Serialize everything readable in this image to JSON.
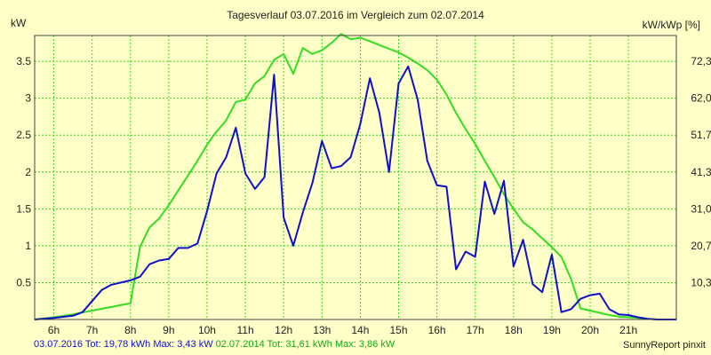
{
  "chart_data": {
    "type": "line",
    "title": "Tagesverlauf 03.07.2016 im Vergleich zum 02.07.2014",
    "ylabel_left": "kW",
    "ylabel_right": "kW/kWp [%]",
    "x_ticks": [
      "6h",
      "7h",
      "8h",
      "9h",
      "10h",
      "11h",
      "12h",
      "13h",
      "14h",
      "15h",
      "16h",
      "17h",
      "18h",
      "19h",
      "20h",
      "21h"
    ],
    "x_range": [
      5.5,
      22.25
    ],
    "y_range": [
      0,
      3.85
    ],
    "y_ticks": [
      "0.5",
      "1",
      "1.5",
      "2",
      "2.5",
      "3",
      "3.5"
    ],
    "y_ticks_right": [
      "10,3",
      "20,7",
      "31,0",
      "41,3",
      "51,7",
      "62,0",
      "72,3"
    ],
    "grid": true,
    "series": [
      {
        "name": "03.07.2016",
        "color": "#1010cc",
        "x": [
          5.5,
          6.0,
          6.5,
          6.75,
          7.0,
          7.25,
          7.5,
          7.75,
          8.0,
          8.25,
          8.5,
          8.75,
          9.0,
          9.25,
          9.5,
          9.75,
          10.0,
          10.25,
          10.5,
          10.75,
          11.0,
          11.25,
          11.5,
          11.75,
          12.0,
          12.25,
          12.5,
          12.75,
          13.0,
          13.25,
          13.5,
          13.75,
          14.0,
          14.25,
          14.5,
          14.75,
          15.0,
          15.25,
          15.5,
          15.75,
          16.0,
          16.25,
          16.5,
          16.75,
          17.0,
          17.25,
          17.5,
          17.75,
          18.0,
          18.25,
          18.5,
          18.75,
          19.0,
          19.25,
          19.5,
          19.75,
          20.0,
          20.25,
          20.5,
          20.75,
          21.0,
          21.25,
          21.5,
          21.75,
          22.0,
          22.25
        ],
        "values": [
          0,
          0.02,
          0.05,
          0.1,
          0.25,
          0.4,
          0.47,
          0.5,
          0.53,
          0.58,
          0.75,
          0.8,
          0.82,
          0.97,
          0.97,
          1.03,
          1.47,
          1.98,
          2.2,
          2.6,
          1.98,
          1.77,
          1.93,
          3.32,
          1.38,
          1.0,
          1.45,
          1.85,
          2.42,
          2.05,
          2.08,
          2.2,
          2.65,
          3.27,
          2.8,
          2.0,
          3.2,
          3.43,
          2.98,
          2.15,
          1.82,
          1.8,
          0.68,
          0.92,
          0.85,
          1.87,
          1.43,
          1.88,
          0.72,
          1.08,
          0.48,
          0.37,
          0.88,
          0.1,
          0.14,
          0.28,
          0.33,
          0.35,
          0.14,
          0.07,
          0.06,
          0.03,
          0.01,
          0,
          0,
          0
        ]
      },
      {
        "name": "02.07.2014",
        "color": "#33dd22",
        "x": [
          5.5,
          6.0,
          6.5,
          7.0,
          7.5,
          8.0,
          8.25,
          8.5,
          8.75,
          9.0,
          9.25,
          9.5,
          9.75,
          10.0,
          10.25,
          10.5,
          10.75,
          11.0,
          11.25,
          11.5,
          11.75,
          12.0,
          12.25,
          12.5,
          12.75,
          13.0,
          13.25,
          13.5,
          13.75,
          14.0,
          14.25,
          14.5,
          14.75,
          15.0,
          15.25,
          15.5,
          15.75,
          16.0,
          16.25,
          16.5,
          16.75,
          17.0,
          17.25,
          17.5,
          17.75,
          18.0,
          18.25,
          18.5,
          18.75,
          19.0,
          19.25,
          19.5,
          19.75,
          20.0,
          20.25,
          20.5,
          20.75,
          21.0,
          21.25,
          21.5,
          21.75,
          22.0,
          22.25
        ],
        "values": [
          0,
          0.03,
          0.07,
          0.12,
          0.17,
          0.22,
          0.98,
          1.25,
          1.37,
          1.55,
          1.75,
          1.95,
          2.15,
          2.37,
          2.55,
          2.7,
          2.95,
          2.98,
          3.2,
          3.3,
          3.52,
          3.6,
          3.33,
          3.68,
          3.6,
          3.65,
          3.75,
          3.87,
          3.8,
          3.82,
          3.77,
          3.72,
          3.67,
          3.62,
          3.55,
          3.47,
          3.38,
          3.25,
          3.05,
          2.8,
          2.58,
          2.38,
          2.15,
          1.93,
          1.7,
          1.5,
          1.32,
          1.22,
          1.1,
          0.98,
          0.85,
          0.55,
          0.15,
          0.12,
          0.09,
          0.06,
          0.04,
          0.03,
          0.02,
          0.01,
          0,
          0,
          0
        ]
      }
    ]
  },
  "footer": {
    "series1_summary": "03.07.2016 Tot: 19,78 kWh Max: 3,43 kW",
    "series2_summary": "02.07.2014 Tot: 31,61 kWh Max: 3,86 kW",
    "credit": "SunnyReport pinxit"
  }
}
